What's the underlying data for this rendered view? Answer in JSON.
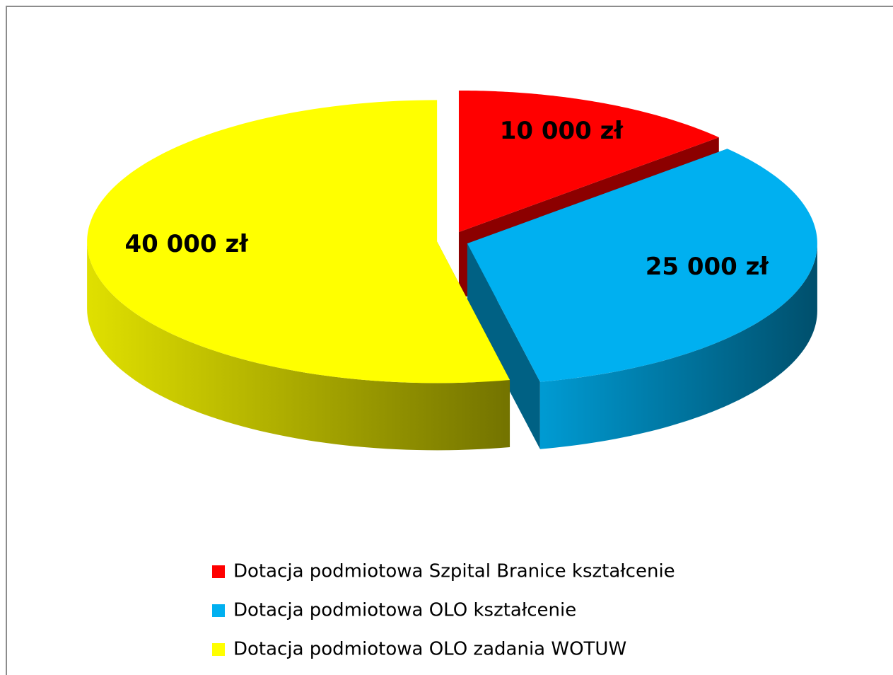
{
  "chart_data": {
    "type": "pie",
    "categories": [
      "Dotacja podmiotowa Szpital Branice kształcenie",
      "Dotacja podmiotowa OLO kształcenie",
      "Dotacja podmiotowa OLO zadania WOTUW"
    ],
    "values": [
      10000,
      25000,
      40000
    ],
    "value_labels": [
      "10 000 zł",
      "25 000 zł",
      "40 000 zł"
    ],
    "colors": [
      "#ff0000",
      "#00b0f0",
      "#ffff00"
    ],
    "legend": "bottom"
  }
}
